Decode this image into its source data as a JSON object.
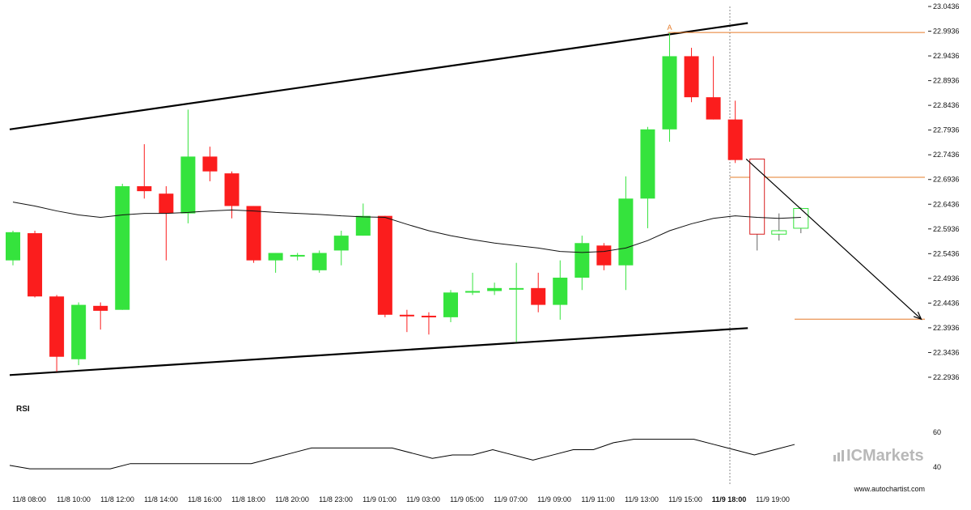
{
  "chart_data": {
    "type": "candlestick",
    "timeframe_note": "hourly candles",
    "y_ticks": [
      "23.0436",
      "22.9936",
      "22.9436",
      "22.8936",
      "22.8436",
      "22.7936",
      "22.7436",
      "22.6936",
      "22.6436",
      "22.5936",
      "22.5436",
      "22.4936",
      "22.4436",
      "22.3936",
      "22.3436",
      "22.2936"
    ],
    "ylim": [
      22.2936,
      23.0436
    ],
    "x_ticks": [
      "11/8 08:00",
      "11/8 10:00",
      "11/8 12:00",
      "11/8 14:00",
      "11/8 16:00",
      "11/8 18:00",
      "11/8 20:00",
      "11/8 23:00",
      "11/9 01:00",
      "11/9 03:00",
      "11/9 05:00",
      "11/9 07:00",
      "11/9 09:00",
      "11/9 11:00",
      "11/9 13:00",
      "11/9 15:00",
      "11/9 18:00",
      "11/9 19:00"
    ],
    "highlight_x_tick": "11/9 18:00",
    "candles": [
      {
        "o": 22.53,
        "h": 22.59,
        "l": 22.52,
        "c": 22.587
      },
      {
        "o": 22.585,
        "h": 22.59,
        "l": 22.455,
        "c": 22.457
      },
      {
        "o": 22.457,
        "h": 22.46,
        "l": 22.305,
        "c": 22.335
      },
      {
        "o": 22.33,
        "h": 22.445,
        "l": 22.318,
        "c": 22.44
      },
      {
        "o": 22.438,
        "h": 22.445,
        "l": 22.39,
        "c": 22.428
      },
      {
        "o": 22.43,
        "h": 22.685,
        "l": 22.43,
        "c": 22.68
      },
      {
        "o": 22.68,
        "h": 22.765,
        "l": 22.655,
        "c": 22.67
      },
      {
        "o": 22.665,
        "h": 22.68,
        "l": 22.53,
        "c": 22.625
      },
      {
        "o": 22.625,
        "h": 22.835,
        "l": 22.605,
        "c": 22.74
      },
      {
        "o": 22.74,
        "h": 22.76,
        "l": 22.69,
        "c": 22.71
      },
      {
        "o": 22.706,
        "h": 22.71,
        "l": 22.615,
        "c": 22.64
      },
      {
        "o": 22.64,
        "h": 22.64,
        "l": 22.525,
        "c": 22.53
      },
      {
        "o": 22.53,
        "h": 22.545,
        "l": 22.505,
        "c": 22.545
      },
      {
        "o": 22.54,
        "h": 22.545,
        "l": 22.53,
        "c": 22.541
      },
      {
        "o": 22.51,
        "h": 22.55,
        "l": 22.505,
        "c": 22.545
      },
      {
        "o": 22.55,
        "h": 22.59,
        "l": 22.52,
        "c": 22.58
      },
      {
        "o": 22.58,
        "h": 22.645,
        "l": 22.58,
        "c": 22.62
      },
      {
        "o": 22.62,
        "h": 22.62,
        "l": 22.415,
        "c": 22.42
      },
      {
        "o": 22.42,
        "h": 22.43,
        "l": 22.385,
        "c": 22.418
      },
      {
        "o": 22.418,
        "h": 22.425,
        "l": 22.38,
        "c": 22.416
      },
      {
        "o": 22.415,
        "h": 22.47,
        "l": 22.405,
        "c": 22.465
      },
      {
        "o": 22.465,
        "h": 22.505,
        "l": 22.46,
        "c": 22.468
      },
      {
        "o": 22.468,
        "h": 22.485,
        "l": 22.46,
        "c": 22.474
      },
      {
        "o": 22.474,
        "h": 22.525,
        "l": 22.365,
        "c": 22.474
      },
      {
        "o": 22.474,
        "h": 22.505,
        "l": 22.425,
        "c": 22.44
      },
      {
        "o": 22.44,
        "h": 22.53,
        "l": 22.41,
        "c": 22.495
      },
      {
        "o": 22.495,
        "h": 22.58,
        "l": 22.47,
        "c": 22.565
      },
      {
        "o": 22.56,
        "h": 22.565,
        "l": 22.51,
        "c": 22.52
      },
      {
        "o": 22.52,
        "h": 22.7,
        "l": 22.47,
        "c": 22.655
      },
      {
        "o": 22.655,
        "h": 22.8,
        "l": 22.595,
        "c": 22.795
      },
      {
        "o": 22.795,
        "h": 22.99,
        "l": 22.77,
        "c": 22.943
      },
      {
        "o": 22.943,
        "h": 22.96,
        "l": 22.85,
        "c": 22.86
      },
      {
        "o": 22.86,
        "h": 22.943,
        "l": 22.815,
        "c": 22.815
      },
      {
        "o": 22.815,
        "h": 22.853,
        "l": 22.727,
        "c": 22.733
      }
    ],
    "current_candles": [
      {
        "o": 22.735,
        "h": 22.735,
        "l": 22.55,
        "c": 22.583
      },
      {
        "o": 22.583,
        "h": 22.625,
        "l": 22.57,
        "c": 22.59
      },
      {
        "o": 22.595,
        "h": 22.637,
        "l": 22.585,
        "c": 22.635
      }
    ],
    "moving_average": [
      22.648,
      22.64,
      22.63,
      22.622,
      22.617,
      22.622,
      22.625,
      22.625,
      22.627,
      22.63,
      22.632,
      22.63,
      22.627,
      22.625,
      22.623,
      22.62,
      22.618,
      22.617,
      22.603,
      22.59,
      22.58,
      22.572,
      22.565,
      22.56,
      22.555,
      22.548,
      22.546,
      22.548,
      22.555,
      22.57,
      22.59,
      22.604,
      22.615,
      22.62,
      22.617,
      22.615,
      22.617
    ],
    "channel": {
      "upper": {
        "start": [
          0,
          22.795
        ],
        "end": [
          33.5,
          23.01
        ]
      },
      "lower": {
        "start": [
          0,
          22.298
        ],
        "end": [
          33.5,
          22.393
        ]
      }
    },
    "markers": {
      "peak_label": "A",
      "peak_index": 30,
      "resistance_level": 22.991,
      "mid_level": 22.698,
      "target_level": 22.411,
      "forecast_arrow": {
        "from": [
          33.5,
          22.735
        ],
        "to": [
          41.5,
          22.411
        ]
      }
    },
    "rsi": {
      "title": "RSI",
      "y_ticks": [
        "60",
        "40"
      ],
      "values": [
        41,
        39,
        39,
        39,
        39,
        39,
        42,
        42,
        42,
        42,
        42,
        42,
        42,
        45,
        48,
        51,
        51,
        51,
        51,
        51,
        48,
        45,
        47,
        47,
        50,
        47,
        44,
        47,
        50,
        50,
        54,
        56,
        56,
        56,
        56,
        53,
        50,
        47,
        50,
        53
      ]
    }
  },
  "colors": {
    "bull": "#35e33d",
    "bear": "#fb1d1d",
    "outline": "#d91f1f",
    "levels": "#e67c2a",
    "ma": "#111111",
    "channel": "#000000"
  },
  "watermark": {
    "prefix": "IC",
    "brand": "Markets",
    "icon": "ic-markets-bars-icon"
  },
  "site": "www.autochartist.com"
}
